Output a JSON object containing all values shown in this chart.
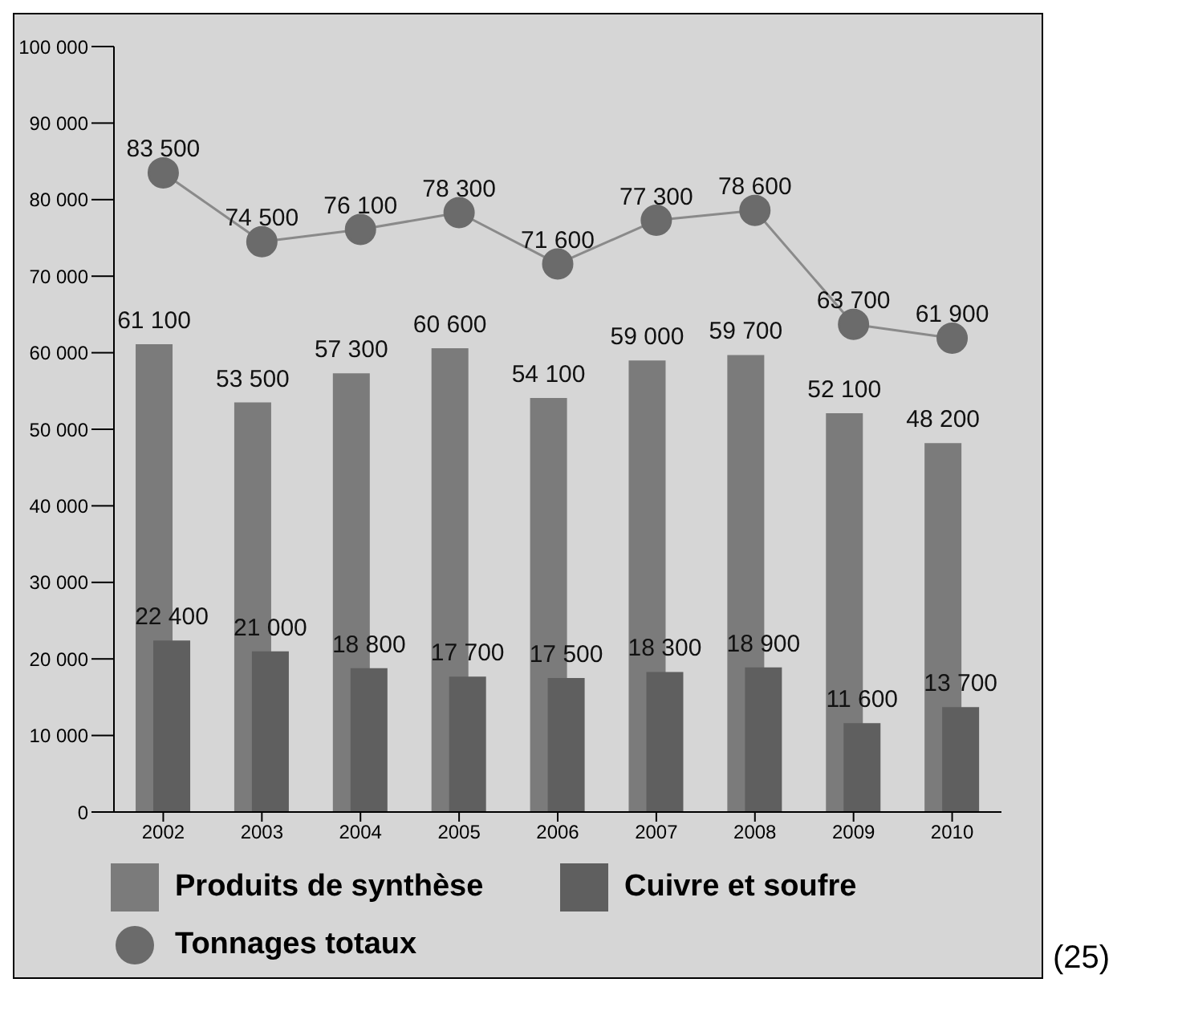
{
  "chart_data": {
    "type": "bar",
    "categories": [
      "2002",
      "2003",
      "2004",
      "2005",
      "2006",
      "2007",
      "2008",
      "2009",
      "2010"
    ],
    "series": [
      {
        "name": "Produits de synthèse",
        "color": "#7b7b7b",
        "values": [
          61100,
          53500,
          57300,
          60600,
          54100,
          59000,
          59700,
          52100,
          48200
        ],
        "value_labels": [
          "61 100",
          "53 500",
          "57 300",
          "60 600",
          "54 100",
          "59 000",
          "59 700",
          "52 100",
          "48 200"
        ]
      },
      {
        "name": "Cuivre et soufre",
        "color": "#5f5f5f",
        "values": [
          22400,
          21000,
          18800,
          17700,
          17500,
          18300,
          18900,
          11600,
          13700
        ],
        "value_labels": [
          "22 400",
          "21 000",
          "18 800",
          "17 700",
          "17 500",
          "18 300",
          "18 900",
          "11 600",
          "13 700"
        ]
      },
      {
        "name": "Tonnages totaux",
        "type": "line",
        "color": "#6b6b6b",
        "values": [
          83500,
          74500,
          76100,
          78300,
          71600,
          77300,
          78600,
          63700,
          61900
        ],
        "value_labels": [
          "83 500",
          "74 500",
          "76 100",
          "78 300",
          "71 600",
          "77 300",
          "78 600",
          "63 700",
          "61 900"
        ]
      }
    ],
    "ylim": [
      0,
      100000
    ],
    "yticks": [
      {
        "value": 0,
        "label": "0"
      },
      {
        "value": 10000,
        "label": "10 000"
      },
      {
        "value": 20000,
        "label": "20 000"
      },
      {
        "value": 30000,
        "label": "30 000"
      },
      {
        "value": 40000,
        "label": "40 000"
      },
      {
        "value": 50000,
        "label": "50 000"
      },
      {
        "value": 60000,
        "label": "60 000"
      },
      {
        "value": 70000,
        "label": "70 000"
      },
      {
        "value": 80000,
        "label": "80 000"
      },
      {
        "value": 90000,
        "label": "90 000"
      },
      {
        "value": 100000,
        "label": "100 000"
      }
    ],
    "grid": false,
    "legend": "bottom",
    "marker": "circle",
    "line_style": "solid",
    "annotations": [
      "(25)"
    ]
  }
}
